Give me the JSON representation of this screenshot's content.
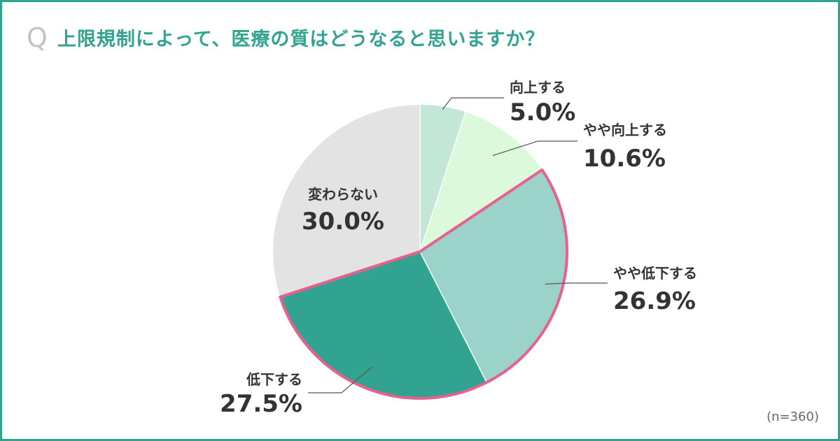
{
  "question": {
    "mark": "Q",
    "title": "上限規制によって、医療の質はどうなると思いますか？"
  },
  "sample_note": "(n=360)",
  "colors": {
    "frame": "#33a391",
    "title": "#33a391",
    "highlight_border": "#e8618c"
  },
  "chart_data": {
    "type": "pie",
    "start": "12 o'clock",
    "direction": "clockwise",
    "slices": [
      {
        "label": "向上する",
        "value": 5.0,
        "display": "5.0%",
        "color": "#c3e7d6",
        "highlight": false
      },
      {
        "label": "やや向上する",
        "value": 10.6,
        "display": "10.6%",
        "color": "#dcf9dc",
        "highlight": false
      },
      {
        "label": "やや低下する",
        "value": 26.9,
        "display": "26.9%",
        "color": "#9bd2ca",
        "highlight": true
      },
      {
        "label": "低下する",
        "value": 27.5,
        "display": "27.5%",
        "color": "#33a391",
        "highlight": true
      },
      {
        "label": "変わらない",
        "value": 30.0,
        "display": "30.0%",
        "color": "#e3e3e3",
        "highlight": false
      }
    ]
  }
}
